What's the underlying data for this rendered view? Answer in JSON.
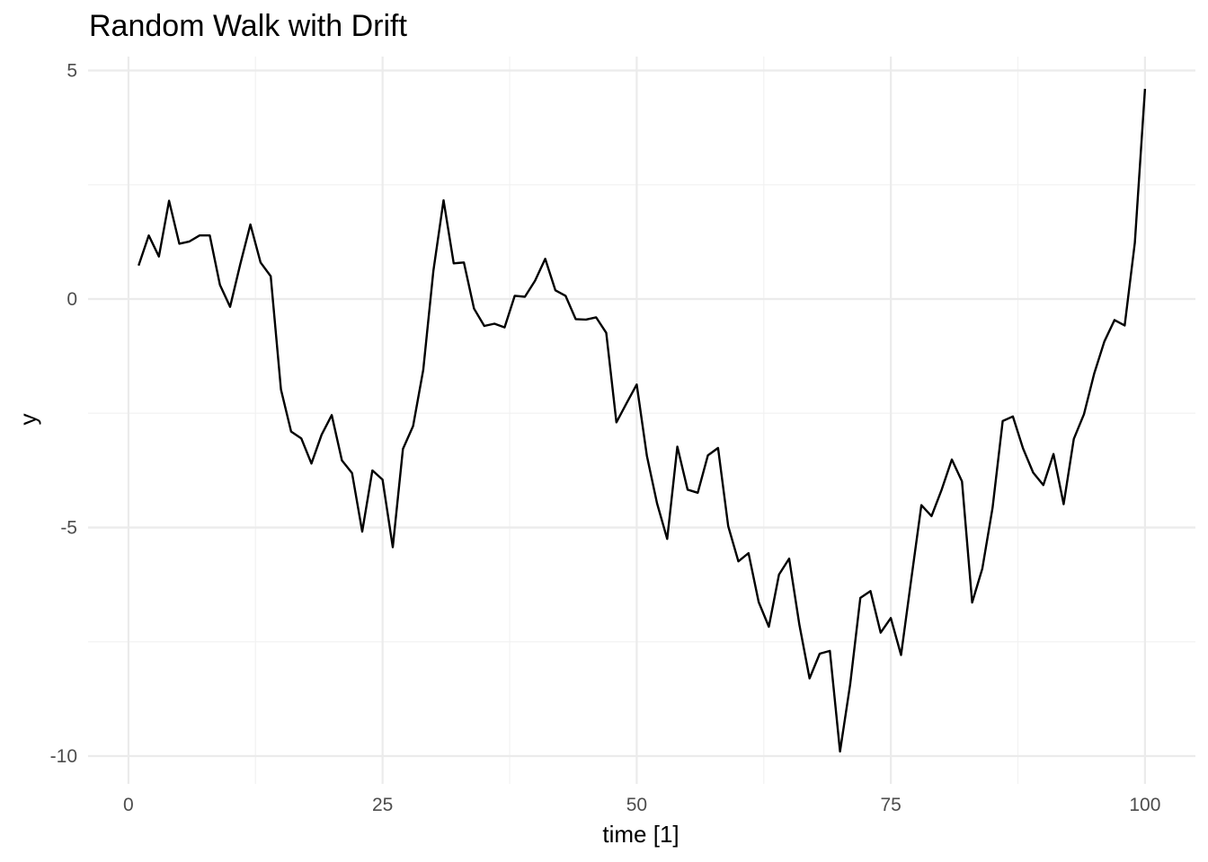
{
  "chart_data": {
    "type": "line",
    "title": "Random Walk with Drift",
    "xlabel": "time [1]",
    "ylabel": "y",
    "xlim": [
      1,
      100
    ],
    "ylim": [
      -9.9,
      4.6
    ],
    "x_ticks": [
      0,
      25,
      50,
      75,
      100
    ],
    "y_ticks": [
      5,
      0,
      -5,
      -10
    ],
    "grid": true,
    "legend": "none",
    "line_color": "#000000",
    "series": [
      {
        "x": [
          1,
          2,
          3,
          4,
          5,
          6,
          7,
          8,
          9,
          10,
          11,
          12,
          13,
          14,
          15,
          16,
          17,
          18,
          19,
          20,
          21,
          22,
          23,
          24,
          25,
          26,
          27,
          28,
          29,
          30,
          31,
          32,
          33,
          34,
          35,
          36,
          37,
          38,
          39,
          40,
          41,
          42,
          43,
          44,
          45,
          46,
          47,
          48,
          49,
          50,
          51,
          52,
          53,
          54,
          55,
          56,
          57,
          58,
          59,
          60,
          61,
          62,
          63,
          64,
          65,
          66,
          67,
          68,
          69,
          70,
          71,
          72,
          73,
          74,
          75,
          76,
          77,
          78,
          79,
          80,
          81,
          82,
          83,
          84,
          85,
          86,
          87,
          88,
          89,
          90,
          91,
          92,
          93,
          94,
          95,
          96,
          97,
          98,
          99,
          100
        ],
        "values": [
          0.73,
          1.39,
          0.93,
          2.15,
          1.21,
          1.26,
          1.39,
          1.39,
          0.31,
          -0.17,
          0.76,
          1.63,
          0.8,
          0.5,
          -1.98,
          -2.9,
          -3.05,
          -3.6,
          -2.97,
          -2.54,
          -3.53,
          -3.81,
          -5.09,
          -3.75,
          -3.95,
          -5.43,
          -3.28,
          -2.78,
          -1.55,
          0.62,
          2.16,
          0.78,
          0.8,
          -0.21,
          -0.59,
          -0.54,
          -0.62,
          0.07,
          0.05,
          0.4,
          0.88,
          0.19,
          0.07,
          -0.44,
          -0.45,
          -0.4,
          -0.74,
          -2.7,
          -2.28,
          -1.87,
          -3.43,
          -4.47,
          -5.25,
          -3.23,
          -4.17,
          -4.24,
          -3.42,
          -3.26,
          -4.97,
          -5.74,
          -5.56,
          -6.63,
          -7.17,
          -6.03,
          -5.68,
          -7.13,
          -8.3,
          -7.76,
          -7.7,
          -9.9,
          -8.43,
          -6.54,
          -6.39,
          -7.3,
          -6.98,
          -7.79,
          -6.14,
          -4.51,
          -4.75,
          -4.17,
          -3.51,
          -3.99,
          -6.64,
          -5.9,
          -4.57,
          -2.67,
          -2.57,
          -3.27,
          -3.8,
          -4.07,
          -3.39,
          -4.49,
          -3.06,
          -2.52,
          -1.63,
          -0.93,
          -0.46,
          -0.58,
          1.23,
          4.6
        ]
      }
    ]
  }
}
